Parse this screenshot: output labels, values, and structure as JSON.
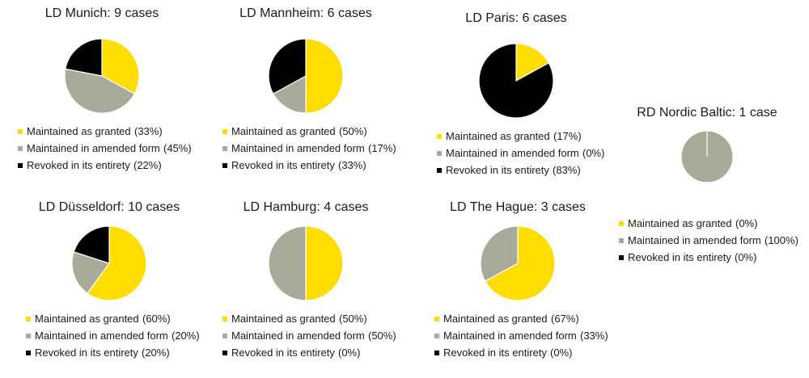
{
  "chart_data": [
    {
      "type": "pie",
      "title": "LD Munich: 9 cases",
      "slices": [
        {
          "label": "Maintained as granted",
          "value": 33,
          "value_label": "(33%)"
        },
        {
          "label": "Maintained in amended form",
          "value": 45,
          "value_label": "(45%)"
        },
        {
          "label": "Revoked in its entirety",
          "value": 22,
          "value_label": "(22%)"
        }
      ]
    },
    {
      "type": "pie",
      "title": "LD Mannheim: 6 cases",
      "slices": [
        {
          "label": "Maintained as granted",
          "value": 50,
          "value_label": "(50%)"
        },
        {
          "label": "Maintained in amended form",
          "value": 17,
          "value_label": "(17%)"
        },
        {
          "label": "Revoked in its entirety",
          "value": 33,
          "value_label": "(33%)"
        }
      ]
    },
    {
      "type": "pie",
      "title": "LD Paris: 6 cases",
      "slices": [
        {
          "label": "Maintained as granted",
          "value": 17,
          "value_label": "(17%)"
        },
        {
          "label": "Maintained in amended form",
          "value": 0,
          "value_label": "(0%)"
        },
        {
          "label": "Revoked in its entirety",
          "value": 83,
          "value_label": "(83%)"
        }
      ]
    },
    {
      "type": "pie",
      "title": "RD Nordic Baltic: 1 case",
      "slices": [
        {
          "label": "Maintained as granted",
          "value": 0,
          "value_label": "(0%)"
        },
        {
          "label": "Maintained in amended form",
          "value": 100,
          "value_label": "(100%)"
        },
        {
          "label": "Revoked in its entirety",
          "value": 0,
          "value_label": "(0%)"
        }
      ]
    },
    {
      "type": "pie",
      "title": "LD Düsseldorf: 10 cases",
      "slices": [
        {
          "label": "Maintained as granted",
          "value": 60,
          "value_label": "(60%)"
        },
        {
          "label": "Maintained in amended form",
          "value": 20,
          "value_label": "(20%)"
        },
        {
          "label": "Revoked in its entirety",
          "value": 20,
          "value_label": "(20%)"
        }
      ]
    },
    {
      "type": "pie",
      "title": "LD Hamburg: 4 cases",
      "slices": [
        {
          "label": "Maintained as granted",
          "value": 50,
          "value_label": "(50%)"
        },
        {
          "label": "Maintained in amended form",
          "value": 50,
          "value_label": "(50%)"
        },
        {
          "label": "Revoked in its entirety",
          "value": 0,
          "value_label": "(0%)"
        }
      ]
    },
    {
      "type": "pie",
      "title": "LD The Hague: 3 cases",
      "slices": [
        {
          "label": "Maintained as granted",
          "value": 67,
          "value_label": "(67%)"
        },
        {
          "label": "Maintained in amended form",
          "value": 33,
          "value_label": "(33%)"
        },
        {
          "label": "Revoked in its entirety",
          "value": 0,
          "value_label": "(0%)"
        }
      ]
    }
  ],
  "colors": {
    "granted": "#FFDD00",
    "amended": "#A9AA99",
    "revoked": "#000000"
  }
}
